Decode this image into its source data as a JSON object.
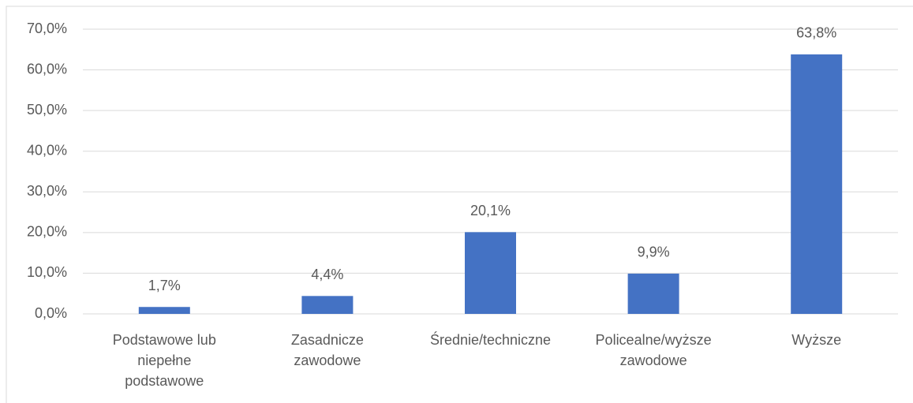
{
  "chart_data": {
    "type": "bar",
    "categories": [
      "Podstawowe lub niepełne podstawowe",
      "Zasadnicze zawodowe",
      "Średnie/techniczne",
      "Policealne/wyższe zawodowe",
      "Wyższe"
    ],
    "values": [
      1.7,
      4.4,
      20.1,
      9.9,
      63.8
    ],
    "value_labels": [
      "1,7%",
      "4,4%",
      "20,1%",
      "9,9%",
      "63,8%"
    ],
    "color": "#4472c4",
    "ylim": [
      0,
      70
    ],
    "yticks": [
      {
        "value": 0,
        "label": "0,0%"
      },
      {
        "value": 10,
        "label": "10,0%"
      },
      {
        "value": 20,
        "label": "20,0%"
      },
      {
        "value": 30,
        "label": "30,0%"
      },
      {
        "value": 40,
        "label": "40,0%"
      },
      {
        "value": 50,
        "label": "50,0%"
      },
      {
        "value": 60,
        "label": "60,0%"
      },
      {
        "value": 70,
        "label": "70,0%"
      }
    ],
    "grid": true
  }
}
